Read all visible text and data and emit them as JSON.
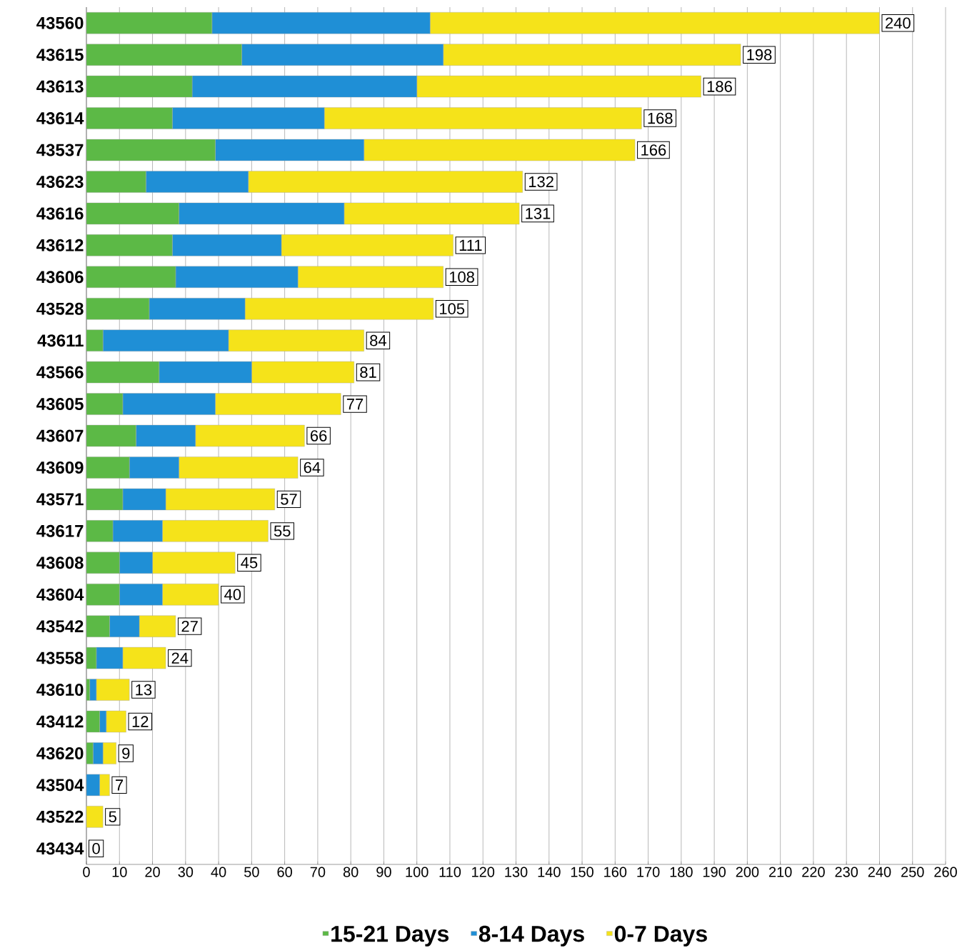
{
  "chart_data": {
    "type": "bar",
    "orientation": "horizontal",
    "stacked": true,
    "categories": [
      "43560",
      "43615",
      "43613",
      "43614",
      "43537",
      "43623",
      "43616",
      "43612",
      "43606",
      "43528",
      "43611",
      "43566",
      "43605",
      "43607",
      "43609",
      "43571",
      "43617",
      "43608",
      "43604",
      "43542",
      "43558",
      "43610",
      "43412",
      "43620",
      "43504",
      "43522",
      "43434"
    ],
    "series": [
      {
        "name": "15-21 Days",
        "color": "#5cb946",
        "values": [
          38,
          47,
          32,
          26,
          39,
          18,
          28,
          26,
          27,
          19,
          5,
          22,
          11,
          15,
          13,
          11,
          8,
          10,
          10,
          7,
          3,
          1,
          4,
          2,
          0,
          0,
          0
        ]
      },
      {
        "name": "8-14 Days",
        "color": "#1f8fd6",
        "values": [
          66,
          61,
          68,
          46,
          45,
          31,
          50,
          33,
          37,
          29,
          38,
          28,
          28,
          18,
          15,
          13,
          15,
          10,
          13,
          9,
          8,
          2,
          2,
          3,
          4,
          0,
          0
        ]
      },
      {
        "name": "0-7 Days",
        "color": "#f5e31a",
        "values": [
          136,
          90,
          86,
          96,
          82,
          83,
          53,
          52,
          44,
          57,
          41,
          31,
          38,
          33,
          36,
          33,
          32,
          25,
          17,
          11,
          13,
          10,
          6,
          4,
          3,
          5,
          0
        ]
      }
    ],
    "totals": [
      "240",
      "198",
      "186",
      "168",
      "166",
      "132",
      "131",
      "111",
      "108",
      "105",
      "84",
      "81",
      "77",
      "66",
      "64",
      "57",
      "55",
      "45",
      "40",
      "27",
      "24",
      "13",
      "12",
      "9",
      "7",
      "5",
      "0"
    ],
    "xlim": [
      0,
      260
    ],
    "xticks": [
      0,
      10,
      20,
      30,
      40,
      50,
      60,
      70,
      80,
      90,
      100,
      110,
      120,
      130,
      140,
      150,
      160,
      170,
      180,
      190,
      200,
      210,
      220,
      230,
      240,
      250,
      260
    ],
    "grid": "x",
    "legend": "bottom"
  }
}
